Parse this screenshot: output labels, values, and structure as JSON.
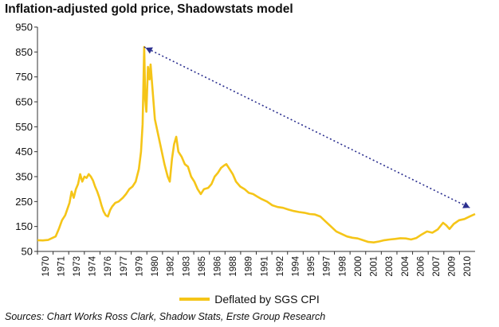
{
  "colors": {
    "series": "#F5C518",
    "arrow": "#2B2F8F",
    "axis": "#333333"
  },
  "chart_data": {
    "type": "line",
    "title": "Inflation-adjusted gold price, Shadowstats model",
    "xlabel": "",
    "ylabel": "",
    "ylim": [
      50,
      950
    ],
    "yticks": [
      50,
      150,
      250,
      350,
      450,
      550,
      650,
      750,
      850,
      950
    ],
    "xlim": [
      1970,
      2011
    ],
    "xticks": [
      "1970",
      "1971",
      "1973",
      "1974",
      "1976",
      "1977",
      "1979",
      "1980",
      "1982",
      "1983",
      "1985",
      "1986",
      "1988",
      "1989",
      "1991",
      "1992",
      "1994",
      "1995",
      "1997",
      "1998",
      "2000",
      "2001",
      "2003",
      "2004",
      "2006",
      "2007",
      "2009",
      "2010"
    ],
    "grid": false,
    "legend_position": "bottom",
    "series": [
      {
        "name": "Deflated by SGS CPI",
        "points": [
          [
            1970.0,
            95
          ],
          [
            1970.5,
            94
          ],
          [
            1971.0,
            96
          ],
          [
            1971.3,
            102
          ],
          [
            1971.7,
            110
          ],
          [
            1972.0,
            140
          ],
          [
            1972.3,
            175
          ],
          [
            1972.6,
            195
          ],
          [
            1973.0,
            245
          ],
          [
            1973.2,
            290
          ],
          [
            1973.4,
            265
          ],
          [
            1973.6,
            300
          ],
          [
            1973.8,
            320
          ],
          [
            1974.0,
            360
          ],
          [
            1974.2,
            330
          ],
          [
            1974.4,
            350
          ],
          [
            1974.6,
            345
          ],
          [
            1974.8,
            360
          ],
          [
            1975.0,
            350
          ],
          [
            1975.2,
            335
          ],
          [
            1975.4,
            310
          ],
          [
            1975.6,
            290
          ],
          [
            1975.8,
            265
          ],
          [
            1976.0,
            235
          ],
          [
            1976.2,
            210
          ],
          [
            1976.4,
            195
          ],
          [
            1976.6,
            190
          ],
          [
            1976.8,
            215
          ],
          [
            1977.0,
            230
          ],
          [
            1977.3,
            245
          ],
          [
            1977.6,
            250
          ],
          [
            1978.0,
            265
          ],
          [
            1978.3,
            280
          ],
          [
            1978.6,
            300
          ],
          [
            1978.9,
            310
          ],
          [
            1979.2,
            330
          ],
          [
            1979.5,
            380
          ],
          [
            1979.7,
            450
          ],
          [
            1979.85,
            560
          ],
          [
            1980.0,
            870
          ],
          [
            1980.1,
            660
          ],
          [
            1980.2,
            610
          ],
          [
            1980.35,
            790
          ],
          [
            1980.5,
            740
          ],
          [
            1980.6,
            800
          ],
          [
            1980.8,
            690
          ],
          [
            1981.0,
            580
          ],
          [
            1981.3,
            520
          ],
          [
            1981.6,
            460
          ],
          [
            1981.9,
            400
          ],
          [
            1982.2,
            350
          ],
          [
            1982.4,
            330
          ],
          [
            1982.6,
            420
          ],
          [
            1982.8,
            480
          ],
          [
            1983.0,
            510
          ],
          [
            1983.2,
            450
          ],
          [
            1983.5,
            430
          ],
          [
            1983.8,
            400
          ],
          [
            1984.1,
            390
          ],
          [
            1984.4,
            350
          ],
          [
            1984.7,
            330
          ],
          [
            1985.0,
            300
          ],
          [
            1985.3,
            280
          ],
          [
            1985.6,
            300
          ],
          [
            1986.0,
            305
          ],
          [
            1986.3,
            320
          ],
          [
            1986.6,
            350
          ],
          [
            1986.9,
            365
          ],
          [
            1987.2,
            385
          ],
          [
            1987.5,
            395
          ],
          [
            1987.7,
            400
          ],
          [
            1988.0,
            380
          ],
          [
            1988.3,
            360
          ],
          [
            1988.6,
            330
          ],
          [
            1989.0,
            310
          ],
          [
            1989.4,
            300
          ],
          [
            1989.8,
            285
          ],
          [
            1990.2,
            280
          ],
          [
            1990.6,
            270
          ],
          [
            1991.0,
            260
          ],
          [
            1991.5,
            250
          ],
          [
            1992.0,
            235
          ],
          [
            1992.5,
            228
          ],
          [
            1993.0,
            225
          ],
          [
            1993.5,
            218
          ],
          [
            1994.0,
            212
          ],
          [
            1994.5,
            208
          ],
          [
            1995.0,
            205
          ],
          [
            1995.5,
            200
          ],
          [
            1996.0,
            198
          ],
          [
            1996.5,
            190
          ],
          [
            1997.0,
            170
          ],
          [
            1997.5,
            150
          ],
          [
            1998.0,
            130
          ],
          [
            1998.5,
            120
          ],
          [
            1999.0,
            110
          ],
          [
            1999.5,
            105
          ],
          [
            2000.0,
            102
          ],
          [
            2000.5,
            95
          ],
          [
            2001.0,
            88
          ],
          [
            2001.5,
            86
          ],
          [
            2002.0,
            90
          ],
          [
            2002.5,
            95
          ],
          [
            2003.0,
            98
          ],
          [
            2003.5,
            100
          ],
          [
            2004.0,
            103
          ],
          [
            2004.5,
            102
          ],
          [
            2005.0,
            98
          ],
          [
            2005.5,
            104
          ],
          [
            2006.0,
            118
          ],
          [
            2006.5,
            130
          ],
          [
            2007.0,
            125
          ],
          [
            2007.5,
            138
          ],
          [
            2008.0,
            165
          ],
          [
            2008.3,
            155
          ],
          [
            2008.6,
            140
          ],
          [
            2009.0,
            160
          ],
          [
            2009.5,
            175
          ],
          [
            2010.0,
            180
          ],
          [
            2010.5,
            190
          ],
          [
            2011.0,
            200
          ]
        ]
      }
    ],
    "annotations": [
      {
        "type": "dotted-arrow",
        "from": [
          1980.0,
          870
        ],
        "to": [
          2010.5,
          225
        ]
      }
    ],
    "source": "Sources: Chart Works Ross Clark, Shadow Stats, Erste Group Research"
  }
}
